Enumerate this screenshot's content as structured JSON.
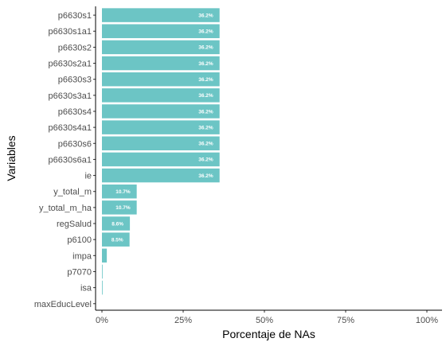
{
  "chart_data": {
    "type": "bar",
    "orientation": "horizontal",
    "categories": [
      "p6630s1",
      "p6630s1a1",
      "p6630s2",
      "p6630s2a1",
      "p6630s3",
      "p6630s3a1",
      "p6630s4",
      "p6630s4a1",
      "p6630s6",
      "p6630s6a1",
      "ie",
      "y_total_m",
      "y_total_m_ha",
      "regSalud",
      "p6100",
      "impa",
      "p7070",
      "isa",
      "maxEducLevel"
    ],
    "values": [
      36.2,
      36.2,
      36.2,
      36.2,
      36.2,
      36.2,
      36.2,
      36.2,
      36.2,
      36.2,
      36.2,
      10.7,
      10.7,
      8.6,
      8.5,
      1.5,
      0.2,
      0.2,
      0.0
    ],
    "data_labels": [
      "36.2%",
      "36.2%",
      "36.2%",
      "36.2%",
      "36.2%",
      "36.2%",
      "36.2%",
      "36.2%",
      "36.2%",
      "36.2%",
      "36.2%",
      "10.7%",
      "10.7%",
      "8.6%",
      "8.5%",
      "",
      "",
      "",
      ""
    ],
    "xlabel": "Porcentaje de NAs",
    "ylabel": "Variables",
    "xlim": [
      0,
      100
    ],
    "xticks": [
      0,
      25,
      50,
      75,
      100
    ],
    "xtick_labels": [
      "0%",
      "25%",
      "50%",
      "75%",
      "100%"
    ],
    "grid": false,
    "bar_color": "#6cc5c5"
  }
}
